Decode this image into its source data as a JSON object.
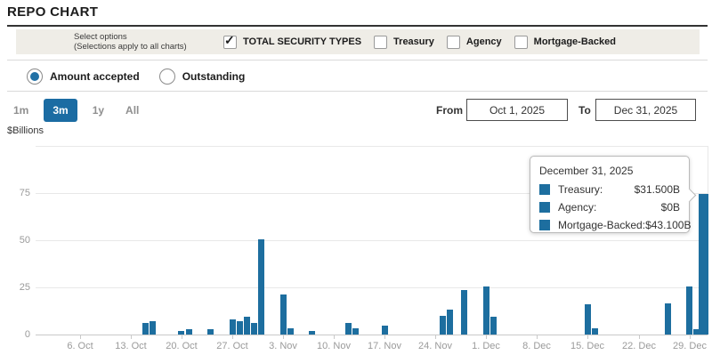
{
  "page": {
    "title": "REPO CHART"
  },
  "icons": {
    "checkmark": "✓"
  },
  "colors": {
    "bar_blue": "#1d6e9f",
    "accent_blue": "#1b6ca3",
    "options_bar_bg": "#efede7",
    "gridline": "#e8e8e8",
    "axis_label": "#9a9a9a"
  },
  "options_bar": {
    "label_line1": "Select options",
    "label_line2": "(Selections apply to all charts)",
    "checkboxes": [
      {
        "label": "TOTAL SECURITY TYPES",
        "checked": true
      },
      {
        "label": "Treasury",
        "checked": false
      },
      {
        "label": "Agency",
        "checked": false
      },
      {
        "label": "Mortgage-Backed",
        "checked": false
      }
    ]
  },
  "view_toggle": {
    "options": [
      {
        "label": "Amount accepted",
        "selected": true
      },
      {
        "label": "Outstanding",
        "selected": false
      }
    ]
  },
  "range_selector": {
    "options": [
      {
        "label": "1m",
        "active": false
      },
      {
        "label": "3m",
        "active": true
      },
      {
        "label": "1y",
        "active": false
      },
      {
        "label": "All",
        "active": false
      }
    ],
    "from_label": "From",
    "from_value": "Oct 1, 2025",
    "to_label": "To",
    "to_value": "Dec 31, 2025"
  },
  "tooltip": {
    "date": "December 31, 2025",
    "rows": [
      {
        "label": "Treasury:",
        "value": "$31.500B"
      },
      {
        "label": "Agency:",
        "value": "$0B"
      },
      {
        "label": "Mortgage-Backed:",
        "value": "$43.100B"
      }
    ]
  },
  "chart_data": {
    "type": "bar",
    "title": "",
    "xlabel": "",
    "ylabel": "$Billions",
    "ylim": [
      0,
      100
    ],
    "yticks": [
      0,
      25,
      50,
      75
    ],
    "gridline_values": [
      0,
      25,
      50,
      75,
      100
    ],
    "grid": true,
    "legend_position": "none",
    "x_range_days": 92,
    "x_range": [
      "Oct 1, 2025",
      "Dec 31, 2025"
    ],
    "x_ticks": [
      {
        "day": 5,
        "label": "6. Oct"
      },
      {
        "day": 12,
        "label": "13. Oct"
      },
      {
        "day": 19,
        "label": "20. Oct"
      },
      {
        "day": 26,
        "label": "27. Oct"
      },
      {
        "day": 33,
        "label": "3. Nov"
      },
      {
        "day": 40,
        "label": "10. Nov"
      },
      {
        "day": 47,
        "label": "17. Nov"
      },
      {
        "day": 54,
        "label": "24. Nov"
      },
      {
        "day": 61,
        "label": "1. Dec"
      },
      {
        "day": 68,
        "label": "8. Dec"
      },
      {
        "day": 75,
        "label": "15. Dec"
      },
      {
        "day": 82,
        "label": "22. Dec"
      },
      {
        "day": 89,
        "label": "29. Dec"
      }
    ],
    "series_note": "Total security types, amount accepted, $Billions",
    "bars": [
      {
        "date": "Oct 15, 2025",
        "day": 14,
        "value": 6.3
      },
      {
        "date": "Oct 16, 2025",
        "day": 15,
        "value": 7.1
      },
      {
        "date": "Oct 20, 2025",
        "day": 19,
        "value": 2.0
      },
      {
        "date": "Oct 21, 2025",
        "day": 20,
        "value": 2.9
      },
      {
        "date": "Oct 24, 2025",
        "day": 23,
        "value": 2.6
      },
      {
        "date": "Oct 27, 2025",
        "day": 26,
        "value": 8.1
      },
      {
        "date": "Oct 28, 2025",
        "day": 27,
        "value": 7.1
      },
      {
        "date": "Oct 29, 2025",
        "day": 28,
        "value": 9.4
      },
      {
        "date": "Oct 30, 2025",
        "day": 29,
        "value": 5.9
      },
      {
        "date": "Oct 31, 2025",
        "day": 30,
        "value": 50.3
      },
      {
        "date": "Nov 3, 2025",
        "day": 33,
        "value": 21.0
      },
      {
        "date": "Nov 4, 2025",
        "day": 34,
        "value": 3.4
      },
      {
        "date": "Nov 7, 2025",
        "day": 37,
        "value": 1.9
      },
      {
        "date": "Nov 12, 2025",
        "day": 42,
        "value": 5.9
      },
      {
        "date": "Nov 13, 2025",
        "day": 43,
        "value": 3.3
      },
      {
        "date": "Nov 17, 2025",
        "day": 47,
        "value": 4.8
      },
      {
        "date": "Nov 25, 2025",
        "day": 55,
        "value": 9.9
      },
      {
        "date": "Nov 26, 2025",
        "day": 56,
        "value": 13.2
      },
      {
        "date": "Nov 28, 2025",
        "day": 58,
        "value": 23.7
      },
      {
        "date": "Dec 1, 2025",
        "day": 61,
        "value": 25.3
      },
      {
        "date": "Dec 2, 2025",
        "day": 62,
        "value": 9.4
      },
      {
        "date": "Dec 15, 2025",
        "day": 75,
        "value": 16.0
      },
      {
        "date": "Dec 16, 2025",
        "day": 76,
        "value": 3.5
      },
      {
        "date": "Dec 26, 2025",
        "day": 86,
        "value": 16.5
      },
      {
        "date": "Dec 29, 2025",
        "day": 89,
        "value": 25.4
      },
      {
        "date": "Dec 30, 2025",
        "day": 90,
        "value": 3.0
      },
      {
        "date": "Dec 31, 2025",
        "day": 91,
        "value": 74.6,
        "width": 11
      }
    ]
  }
}
